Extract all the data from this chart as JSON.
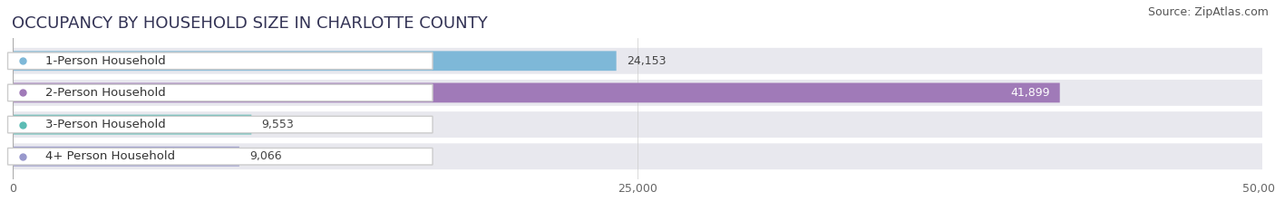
{
  "title": "OCCUPANCY BY HOUSEHOLD SIZE IN CHARLOTTE COUNTY",
  "source": "Source: ZipAtlas.com",
  "categories": [
    "1-Person Household",
    "2-Person Household",
    "3-Person Household",
    "4+ Person Household"
  ],
  "values": [
    24153,
    41899,
    9553,
    9066
  ],
  "bar_colors": [
    "#7eb8d8",
    "#a07ab8",
    "#5bbcb4",
    "#9898cc"
  ],
  "label_colors": [
    "#333333",
    "#ffffff",
    "#333333",
    "#333333"
  ],
  "xlim": [
    0,
    50000
  ],
  "xticks": [
    0,
    25000,
    50000
  ],
  "xtick_labels": [
    "0",
    "25,000",
    "50,000"
  ],
  "title_fontsize": 13,
  "source_fontsize": 9,
  "bar_label_fontsize": 9,
  "category_fontsize": 9.5,
  "tick_fontsize": 9,
  "background_color": "#f5f5f8",
  "row_bg_color": "#e8e8ee",
  "bar_bg_color": "#ebebf2"
}
